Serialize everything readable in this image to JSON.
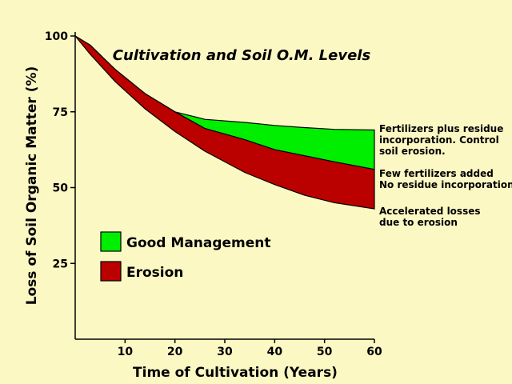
{
  "chart_data": {
    "type": "area",
    "title": "Cultivation and Soil O.M. Levels",
    "xlabel": "Time of Cultivation (Years)",
    "ylabel": "Loss of Soil Organic Matter (%)",
    "xlim": [
      0,
      60
    ],
    "ylim": [
      0,
      100
    ],
    "x_ticks": [
      "10",
      "20",
      "30",
      "40",
      "50",
      "60"
    ],
    "y_ticks": [
      "100",
      "75",
      "50",
      "25"
    ],
    "x": [
      0,
      3,
      8,
      14,
      20,
      26,
      34,
      40,
      46,
      52,
      60
    ],
    "series": [
      {
        "name": "Good Management",
        "color": "#00ee00",
        "lower": [
          100,
          97,
          89,
          81,
          75,
          69.5,
          65.8,
          62.5,
          60.5,
          58.5,
          56
        ],
        "upper": [
          100,
          97,
          89,
          81,
          75,
          72.5,
          71.5,
          70.5,
          69.8,
          69.2,
          69
        ]
      },
      {
        "name": "Erosion",
        "color": "#bb0000",
        "lower": [
          100,
          94,
          85,
          76,
          68.5,
          62,
          55,
          51,
          47.5,
          45,
          43
        ],
        "upper": [
          100,
          97,
          89,
          81,
          75,
          69.5,
          65.8,
          62.5,
          60.5,
          58.5,
          56
        ]
      }
    ],
    "annotations": [
      {
        "y": 69,
        "lines": [
          "Fertilizers  plus residue",
          "incorporation. Control",
          "soil erosion."
        ]
      },
      {
        "y": 56,
        "lines": [
          "Few fertilizers added",
          "No residue incorporation"
        ]
      },
      {
        "y": 43,
        "lines": [
          "Accelerated losses",
          "due to erosion"
        ]
      }
    ],
    "legend": {
      "position": "center-left",
      "items": [
        {
          "label": "Good Management",
          "color": "#00ee00"
        },
        {
          "label": "Erosion",
          "color": "#bb0000"
        }
      ]
    },
    "grid": false
  }
}
